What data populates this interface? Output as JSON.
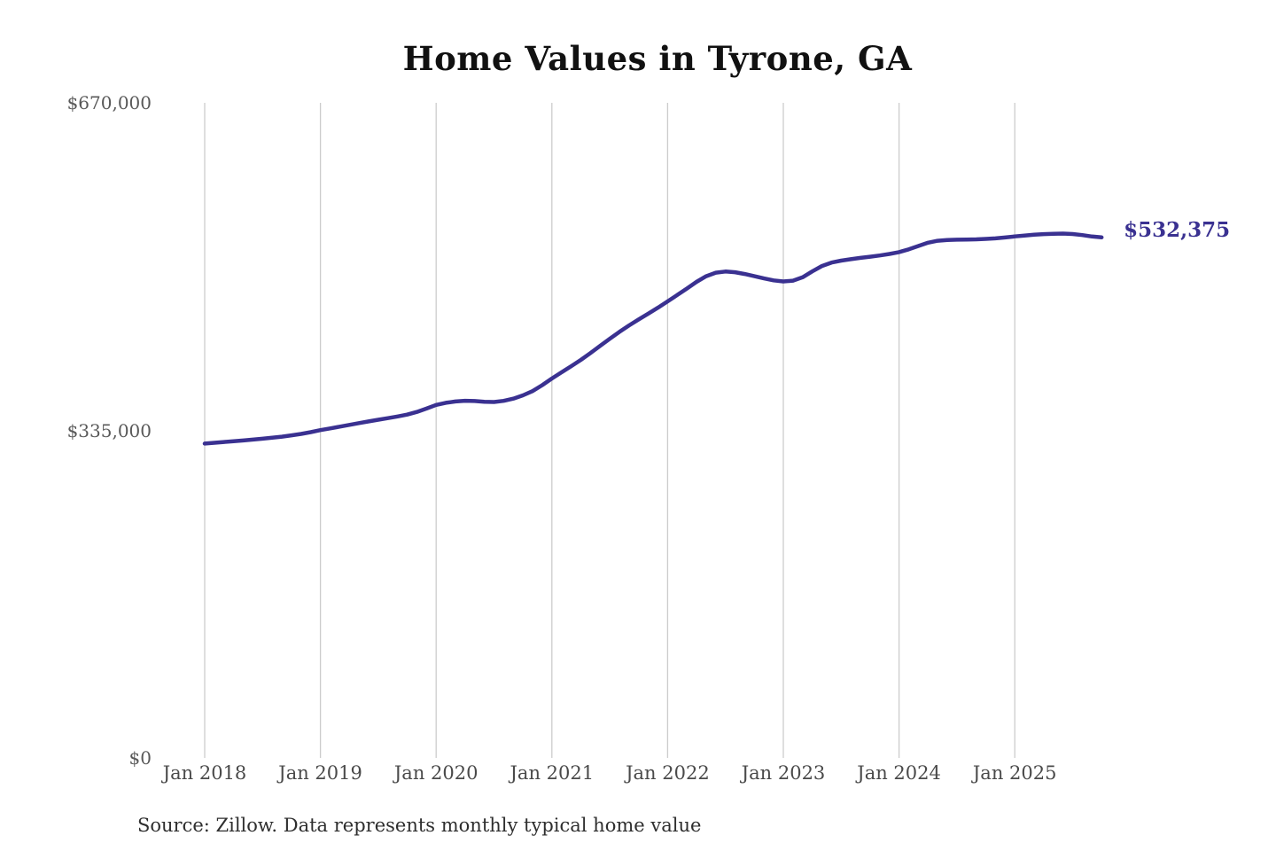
{
  "title": "Home Values in Tyrone, GA",
  "source": "Source: Zillow. Data represents monthly typical home value",
  "colors": {
    "line": "#3a3191",
    "grid": "#cccccc",
    "title": "#111111",
    "y_label": "#595959",
    "x_label": "#4a4a4a",
    "end_label": "#3a3191",
    "background": "#ffffff"
  },
  "chart_data": {
    "type": "line",
    "title": "Home Values in Tyrone, GA",
    "series_name": "Monthly typical home value",
    "unit": "USD",
    "legend": "none",
    "grid": "vertical-only",
    "ylim": [
      0,
      670000
    ],
    "y_ticks": [
      {
        "label": "$670,000",
        "value": 670000
      },
      {
        "label": "$335,000",
        "value": 335000
      },
      {
        "label": "$0",
        "value": 0
      }
    ],
    "x_ticks": [
      "Jan 2018",
      "Jan 2019",
      "Jan 2020",
      "Jan 2021",
      "Jan 2022",
      "Jan 2023",
      "Jan 2024",
      "Jan 2025"
    ],
    "end_label": "$532,375",
    "latest_value": 532375,
    "x": [
      "2018-01",
      "2018-02",
      "2018-03",
      "2018-04",
      "2018-05",
      "2018-06",
      "2018-07",
      "2018-08",
      "2018-09",
      "2018-10",
      "2018-11",
      "2018-12",
      "2019-01",
      "2019-02",
      "2019-03",
      "2019-04",
      "2019-05",
      "2019-06",
      "2019-07",
      "2019-08",
      "2019-09",
      "2019-10",
      "2019-11",
      "2019-12",
      "2020-01",
      "2020-02",
      "2020-03",
      "2020-04",
      "2020-05",
      "2020-06",
      "2020-07",
      "2020-08",
      "2020-09",
      "2020-10",
      "2020-11",
      "2020-12",
      "2021-01",
      "2021-02",
      "2021-03",
      "2021-04",
      "2021-05",
      "2021-06",
      "2021-07",
      "2021-08",
      "2021-09",
      "2021-10",
      "2021-11",
      "2021-12",
      "2022-01",
      "2022-02",
      "2022-03",
      "2022-04",
      "2022-05",
      "2022-06",
      "2022-07",
      "2022-08",
      "2022-09",
      "2022-10",
      "2022-11",
      "2022-12",
      "2023-01",
      "2023-02",
      "2023-03",
      "2023-04",
      "2023-05",
      "2023-06",
      "2023-07",
      "2023-08",
      "2023-09",
      "2023-10",
      "2023-11",
      "2023-12",
      "2024-01",
      "2024-02",
      "2024-03",
      "2024-04",
      "2024-05",
      "2024-06",
      "2024-07",
      "2024-08",
      "2024-09",
      "2024-10",
      "2024-11",
      "2024-12",
      "2025-01",
      "2025-02",
      "2025-03",
      "2025-04",
      "2025-05",
      "2025-06",
      "2025-07",
      "2025-08",
      "2025-09",
      "2025-10"
    ],
    "values": [
      321500,
      322300,
      323100,
      323900,
      324700,
      325600,
      326500,
      327500,
      328600,
      329900,
      331400,
      333200,
      335300,
      337000,
      338800,
      340600,
      342400,
      344200,
      345900,
      347500,
      349200,
      351100,
      353900,
      357300,
      361000,
      363200,
      364600,
      365300,
      365000,
      364200,
      364000,
      365200,
      367500,
      370800,
      375200,
      381200,
      388000,
      394400,
      400600,
      407100,
      414100,
      421400,
      428700,
      435700,
      442300,
      448500,
      454400,
      460500,
      466900,
      473400,
      480100,
      486900,
      492700,
      496300,
      497500,
      496700,
      494900,
      492700,
      490400,
      488400,
      487300,
      488100,
      491600,
      497600,
      503100,
      506600,
      508600,
      510100,
      511400,
      512600,
      513900,
      515400,
      517300,
      520100,
      523600,
      526900,
      528900,
      529700,
      530000,
      530200,
      530400,
      530800,
      531400,
      532300,
      533400,
      534300,
      535100,
      535700,
      536100,
      536300,
      535800,
      534700,
      533300,
      532375
    ]
  }
}
